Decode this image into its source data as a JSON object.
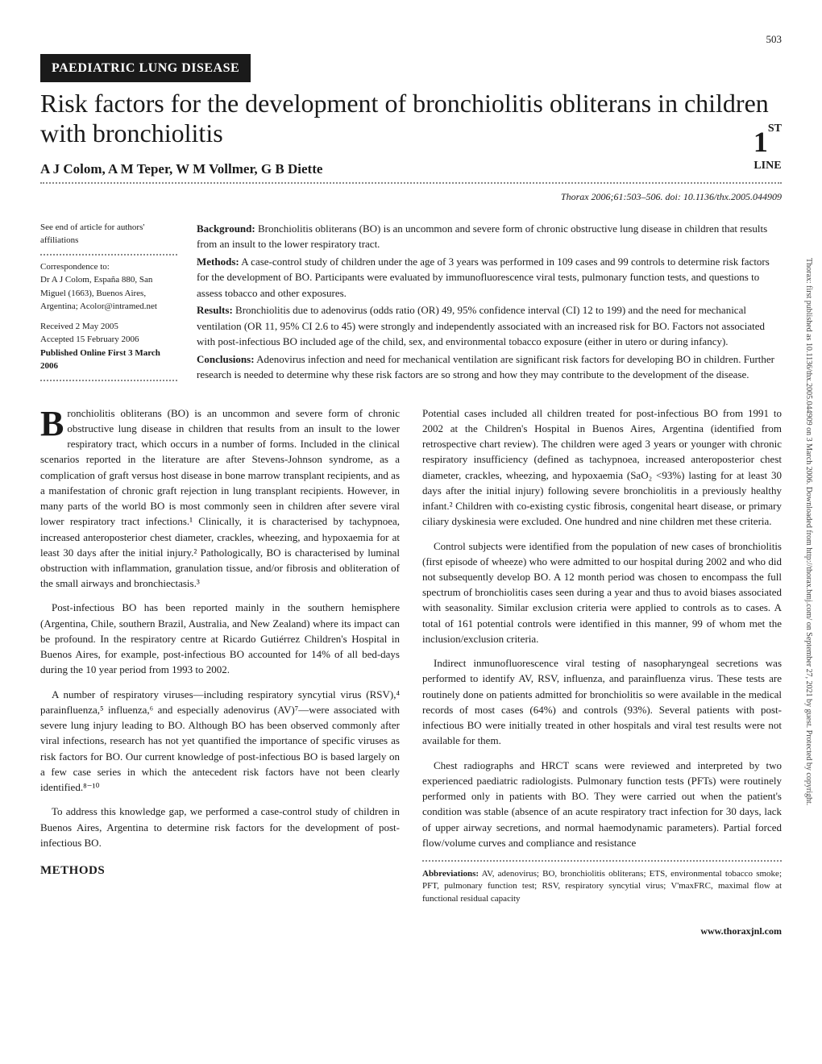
{
  "page_number": "503",
  "section_badge": "PAEDIATRIC LUNG DISEASE",
  "title": "Risk factors for the development of bronchiolitis obliterans in children with bronchiolitis",
  "authors": "A J Colom, A M Teper, W M Vollmer, G B Diette",
  "citation": "Thorax 2006;61:503–506. doi: 10.1136/thx.2005.044909",
  "first_badge": {
    "one": "1",
    "st": "ST",
    "line": "LINE"
  },
  "meta": {
    "affiliations_note": "See end of article for authors' affiliations",
    "correspondence_label": "Correspondence to:",
    "correspondence_body": "Dr A J Colom, España 880, San Miguel (1663), Buenos Aires, Argentina; Acolor@intramed.net",
    "received": "Received 2 May 2005",
    "accepted": "Accepted 15 February 2006",
    "published": "Published Online First 3 March 2006"
  },
  "abstract": {
    "background_label": "Background:",
    "background": " Bronchiolitis obliterans (BO) is an uncommon and severe form of chronic obstructive lung disease in children that results from an insult to the lower respiratory tract.",
    "methods_label": "Methods:",
    "methods": " A case-control study of children under the age of 3 years was performed in 109 cases and 99 controls to determine risk factors for the development of BO. Participants were evaluated by immunofluorescence viral tests, pulmonary function tests, and questions to assess tobacco and other exposures.",
    "results_label": "Results:",
    "results": " Bronchiolitis due to adenovirus (odds ratio (OR) 49, 95% confidence interval (CI) 12 to 199) and the need for mechanical ventilation (OR 11, 95% CI 2.6 to 45) were strongly and independently associated with an increased risk for BO. Factors not associated with post-infectious BO included age of the child, sex, and environmental tobacco exposure (either in utero or during infancy).",
    "conclusions_label": "Conclusions:",
    "conclusions": " Adenovirus infection and need for mechanical ventilation are significant risk factors for developing BO in children. Further research is needed to determine why these risk factors are so strong and how they may contribute to the development of the disease."
  },
  "body": {
    "p1_dropcap": "B",
    "p1": "ronchiolitis obliterans (BO) is an uncommon and severe form of chronic obstructive lung disease in children that results from an insult to the lower respiratory tract, which occurs in a number of forms. Included in the clinical scenarios reported in the literature are after Stevens-Johnson syndrome, as a complication of graft versus host disease in bone marrow transplant recipients, and as a manifestation of chronic graft rejection in lung transplant recipients. However, in many parts of the world BO is most commonly seen in children after severe viral lower respiratory tract infections.¹ Clinically, it is characterised by tachypnoea, increased anteroposterior chest diameter, crackles, wheezing, and hypoxaemia for at least 30 days after the initial injury.² Pathologically, BO is characterised by luminal obstruction with inflammation, granulation tissue, and/or fibrosis and obliteration of the small airways and bronchiectasis.³",
    "p2": "Post-infectious BO has been reported mainly in the southern hemisphere (Argentina, Chile, southern Brazil, Australia, and New Zealand) where its impact can be profound. In the respiratory centre at Ricardo Gutiérrez Children's Hospital in Buenos Aires, for example, post-infectious BO accounted for 14% of all bed-days during the 10 year period from 1993 to 2002.",
    "p3": "A number of respiratory viruses—including respiratory syncytial virus (RSV),⁴ parainfluenza,⁵ influenza,⁶ and especially adenovirus (AV)⁷—were associated with severe lung injury leading to BO. Although BO has been observed commonly after viral infections, research has not yet quantified the importance of specific viruses as risk factors for BO. Our current knowledge of post-infectious BO is based largely on a few case series in which the antecedent risk factors have not been clearly identified.⁸⁻¹⁰",
    "p4": "To address this knowledge gap, we performed a case-control study of children in Buenos Aires, Argentina to determine risk factors for the development of post-infectious BO.",
    "methods_heading": "METHODS",
    "p5": "Potential cases included all children treated for post-infectious BO from 1991 to 2002 at the Children's Hospital in Buenos Aires, Argentina (identified from retrospective chart review). The children were aged 3 years or younger with chronic respiratory insufficiency (defined as tachypnoea, increased anteroposterior chest diameter, crackles, wheezing, and hypoxaemia (SaO₂ <93%) lasting for at least 30 days after the initial injury) following severe bronchiolitis in a previously healthy infant.² Children with co-existing cystic fibrosis, congenital heart disease, or primary ciliary dyskinesia were excluded. One hundred and nine children met these criteria.",
    "p6": "Control subjects were identified from the population of new cases of bronchiolitis (first episode of wheeze) who were admitted to our hospital during 2002 and who did not subsequently develop BO. A 12 month period was chosen to encompass the full spectrum of bronchiolitis cases seen during a year and thus to avoid biases associated with seasonality. Similar exclusion criteria were applied to controls as to cases. A total of 161 potential controls were identified in this manner, 99 of whom met the inclusion/exclusion criteria.",
    "p7": "Indirect inmunofluorescence viral testing of nasopharyngeal secretions was performed to identify AV, RSV, influenza, and parainfluenza virus. These tests are routinely done on patients admitted for bronchiolitis so were available in the medical records of most cases (64%) and controls (93%). Several patients with post-infectious BO were initially treated in other hospitals and viral test results were not available for them.",
    "p8": "Chest radiographs and HRCT scans were reviewed and interpreted by two experienced paediatric radiologists. Pulmonary function tests (PFTs) were routinely performed only in patients with BO. They were carried out when the patient's condition was stable (absence of an acute respiratory tract infection for 30 days, lack of upper airway secretions, and normal haemodynamic parameters). Partial forced flow/volume curves and compliance and resistance"
  },
  "abbreviations": {
    "label": "Abbreviations:",
    "text": " AV, adenovirus; BO, bronchiolitis obliterans; ETS, environmental tobacco smoke; PFT, pulmonary function test; RSV, respiratory syncytial virus; V'maxFRC, maximal flow at functional residual capacity"
  },
  "footer_url": "www.thoraxjnl.com",
  "side_text": "Thorax: first published as 10.1136/thx.2005.044909 on 3 March 2006. Downloaded from http://thorax.bmj.com/ on September 27, 2021 by guest. Protected by copyright."
}
